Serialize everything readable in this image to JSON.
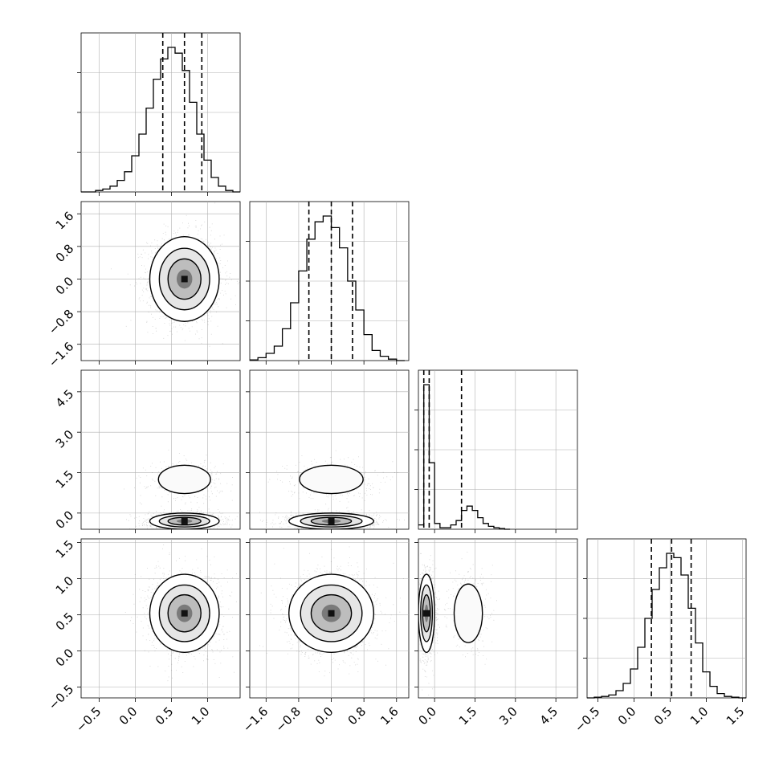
{
  "chart_data": {
    "type": "corner",
    "grid": true,
    "params": [
      {
        "id": "p0",
        "xlim": [
          -0.75,
          1.45
        ],
        "ticks": [
          -0.5,
          0.0,
          0.5,
          1.0
        ],
        "tick_labels": [
          "−0.5",
          "0.0",
          "0.5",
          "1.0"
        ],
        "quantiles": [
          0.38,
          0.68,
          0.92
        ],
        "hist_bins": [
          -0.75,
          -0.65,
          -0.55,
          -0.45,
          -0.35,
          -0.25,
          -0.15,
          -0.05,
          0.05,
          0.15,
          0.25,
          0.35,
          0.45,
          0.55,
          0.65,
          0.75,
          0.85,
          0.95,
          1.05,
          1.15,
          1.25,
          1.35,
          1.45
        ],
        "hist_counts": [
          0,
          0,
          1,
          2,
          4,
          8,
          14,
          25,
          40,
          58,
          78,
          92,
          100,
          96,
          84,
          62,
          40,
          22,
          10,
          4,
          1,
          0
        ]
      },
      {
        "id": "p1",
        "xlim": [
          -2.0,
          1.9
        ],
        "ticks": [
          -1.6,
          -0.8,
          0.0,
          0.8,
          1.6
        ],
        "tick_labels": [
          "−1.6",
          "−0.8",
          "0.0",
          "0.8",
          "1.6"
        ],
        "quantiles": [
          -0.55,
          0.0,
          0.52
        ],
        "hist_bins": [
          -2.0,
          -1.8,
          -1.6,
          -1.4,
          -1.2,
          -1.0,
          -0.8,
          -0.6,
          -0.4,
          -0.2,
          0.0,
          0.2,
          0.4,
          0.6,
          0.8,
          1.0,
          1.2,
          1.4,
          1.6,
          1.8
        ],
        "hist_counts": [
          0.5,
          2,
          5,
          10,
          22,
          40,
          62,
          84,
          96,
          100,
          92,
          78,
          55,
          35,
          18,
          7,
          3,
          1,
          0
        ]
      },
      {
        "id": "p2",
        "xlim": [
          -0.6,
          5.3
        ],
        "ticks": [
          0.0,
          1.5,
          3.0,
          4.5
        ],
        "tick_labels": [
          "0.0",
          "1.5",
          "3.0",
          "4.5"
        ],
        "quantiles": [
          -0.4,
          -0.2,
          1.0
        ],
        "hist_bins": [
          -0.6,
          -0.4,
          -0.2,
          0.0,
          0.2,
          0.4,
          0.6,
          0.8,
          1.0,
          1.2,
          1.4,
          1.6,
          1.8,
          2.0,
          2.2,
          2.4,
          2.6,
          2.8
        ],
        "hist_counts": [
          3,
          100,
          46,
          4,
          1,
          1,
          3,
          6,
          13,
          16,
          13,
          8,
          4,
          2,
          1,
          0.5,
          0
        ],
        "ylim_2d": [
          -0.6,
          5.3
        ]
      },
      {
        "id": "p3",
        "xlim": [
          -0.65,
          1.55
        ],
        "ticks": [
          -0.5,
          0.0,
          0.5,
          1.0,
          1.5
        ],
        "tick_labels": [
          "−0.5",
          "0.0",
          "0.5",
          "1.0",
          "1.5"
        ],
        "quantiles": [
          0.24,
          0.52,
          0.79
        ],
        "hist_bins": [
          -0.65,
          -0.55,
          -0.45,
          -0.35,
          -0.25,
          -0.15,
          -0.05,
          0.05,
          0.15,
          0.25,
          0.35,
          0.45,
          0.55,
          0.65,
          0.75,
          0.85,
          0.95,
          1.05,
          1.15,
          1.25,
          1.35,
          1.45,
          1.55
        ],
        "hist_counts": [
          0,
          0.5,
          1,
          2,
          5,
          10,
          20,
          35,
          55,
          75,
          90,
          100,
          97,
          85,
          62,
          38,
          18,
          8,
          3,
          1,
          0.5,
          0
        ]
      }
    ],
    "pairs": [
      {
        "row": 1,
        "col": 0,
        "cx": 0.68,
        "cy": 0.0,
        "sx": 0.24,
        "sy": 0.52,
        "modes": 1
      },
      {
        "row": 2,
        "col": 0,
        "cx": 0.68,
        "cy": -0.3,
        "sx": 0.24,
        "sy": 0.15,
        "modes": 2,
        "cy2": 1.25,
        "sy2": 0.35
      },
      {
        "row": 2,
        "col": 1,
        "cx": 0.0,
        "cy": -0.3,
        "sx": 0.52,
        "sy": 0.15,
        "modes": 2,
        "cy2": 1.25,
        "sy2": 0.35
      },
      {
        "row": 3,
        "col": 0,
        "cx": 0.68,
        "cy": 0.52,
        "sx": 0.24,
        "sy": 0.27,
        "modes": 1
      },
      {
        "row": 3,
        "col": 1,
        "cx": 0.0,
        "cy": 0.52,
        "sx": 0.52,
        "sy": 0.27,
        "modes": 1
      },
      {
        "row": 3,
        "col": 2,
        "cx": -0.3,
        "cy": 0.52,
        "sx": 0.15,
        "sy": 0.27,
        "modes": 2,
        "cx2": 1.25,
        "sx2": 0.35
      }
    ]
  },
  "colors": {
    "line": "#000000",
    "grid": "#b0b0b0",
    "scatter": "#555555"
  }
}
